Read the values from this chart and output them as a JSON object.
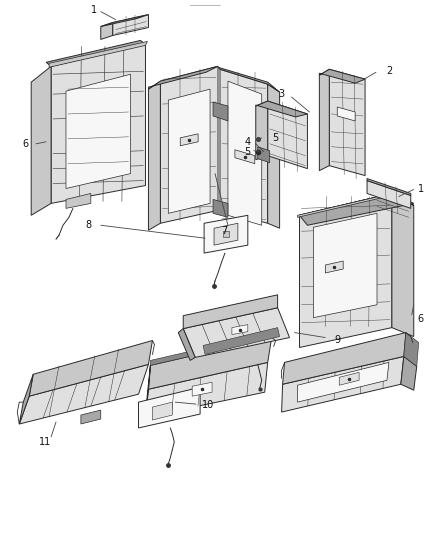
{
  "background_color": "#ffffff",
  "fig_width": 4.38,
  "fig_height": 5.33,
  "dpi": 100,
  "line_color": "#444444",
  "label_fontsize": 7,
  "label_color": "#111111",
  "ec": "#2a2a2a",
  "fc_white": "#f7f7f7",
  "fc_light": "#e0e0e0",
  "fc_mid": "#c8c8c8",
  "fc_dark": "#a8a8a8",
  "fc_darker": "#888888",
  "lw": 0.7
}
